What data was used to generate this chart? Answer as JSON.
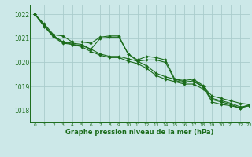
{
  "title": "Graphe pression niveau de la mer (hPa)",
  "bg_color": "#cce8e8",
  "grid_color": "#aacccc",
  "line_color": "#1a6b1a",
  "xlim": [
    -0.5,
    23
  ],
  "ylim": [
    1017.5,
    1022.4
  ],
  "yticks": [
    1018,
    1019,
    1020,
    1021,
    1022
  ],
  "xticks": [
    0,
    1,
    2,
    3,
    4,
    5,
    6,
    7,
    8,
    9,
    10,
    11,
    12,
    13,
    14,
    15,
    16,
    17,
    18,
    19,
    20,
    21,
    22,
    23
  ],
  "series1": [
    1022.0,
    1021.6,
    1021.15,
    1021.1,
    1020.85,
    1020.85,
    1020.8,
    1021.05,
    1021.1,
    1021.1,
    1020.35,
    1020.1,
    1020.25,
    1020.2,
    1020.1,
    1019.3,
    1019.25,
    1019.3,
    1019.05,
    1018.45,
    1018.35,
    1018.25,
    1018.1,
    1018.25
  ],
  "series2": [
    1022.0,
    1021.55,
    1021.1,
    1020.85,
    1020.8,
    1020.75,
    1020.55,
    1020.35,
    1020.25,
    1020.25,
    1020.15,
    1020.05,
    1019.85,
    1019.55,
    1019.4,
    1019.3,
    1019.2,
    1019.2,
    1019.0,
    1018.6,
    1018.5,
    1018.4,
    1018.3,
    1018.25
  ],
  "series3": [
    1022.0,
    1021.5,
    1021.1,
    1020.85,
    1020.75,
    1020.7,
    1020.55,
    1021.0,
    1021.05,
    1021.05,
    1020.35,
    1020.05,
    1020.1,
    1020.1,
    1020.0,
    1019.25,
    1019.15,
    1019.25,
    1019.0,
    1018.35,
    1018.25,
    1018.2,
    1018.1,
    1018.2
  ],
  "series4": [
    1022.0,
    1021.5,
    1021.05,
    1020.8,
    1020.75,
    1020.65,
    1020.45,
    1020.3,
    1020.2,
    1020.2,
    1020.05,
    1019.95,
    1019.75,
    1019.45,
    1019.3,
    1019.2,
    1019.1,
    1019.1,
    1018.9,
    1018.5,
    1018.4,
    1018.3,
    1018.15,
    1018.2
  ]
}
